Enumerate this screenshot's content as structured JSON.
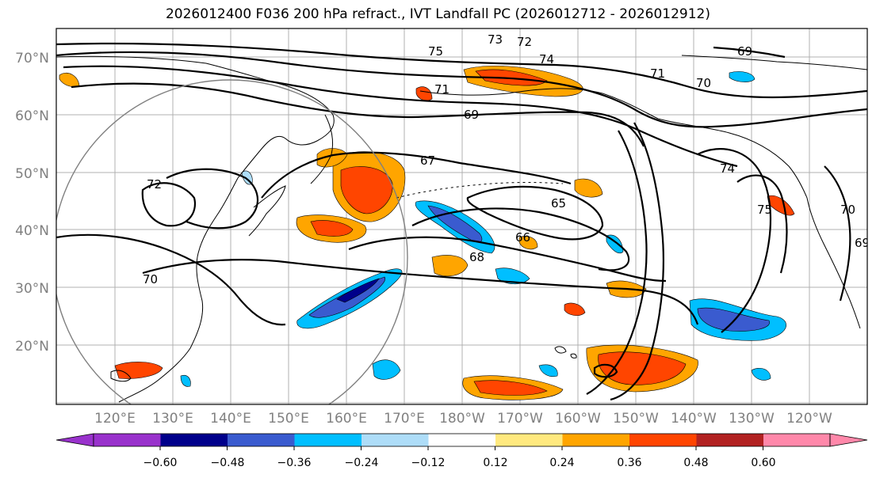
{
  "title": "2026012400 F036 200 hPa refract., IVT Landfall PC (2026012712 - 2026012912)",
  "map": {
    "lat_labels": [
      "70°N",
      "60°N",
      "50°N",
      "40°N",
      "30°N",
      "20°N"
    ],
    "lon_labels": [
      "120°E",
      "130°E",
      "140°E",
      "150°E",
      "160°E",
      "170°E",
      "180°W",
      "170°W",
      "160°W",
      "150°W",
      "140°W",
      "130°W",
      "120°W"
    ],
    "contour_labels": [
      "75",
      "73",
      "72",
      "74",
      "71",
      "70",
      "69",
      "69",
      "67",
      "65",
      "66",
      "68",
      "70",
      "72",
      "74",
      "75",
      "70",
      "69",
      "71"
    ]
  },
  "colorbar": {
    "ticks": [
      "−0.60",
      "−0.48",
      "−0.36",
      "−0.24",
      "−0.12",
      "0.12",
      "0.24",
      "0.36",
      "0.48",
      "0.60"
    ],
    "colors": [
      "#9932CC",
      "#00008B",
      "#3A5BCF",
      "#00BFFF",
      "#AEDDF8",
      "#FFFFFF",
      "#FFE97F",
      "#FFA500",
      "#FF4500",
      "#B22222",
      "#FF88AA"
    ]
  },
  "colors": {
    "red": "#FF4500",
    "orange": "#FFA500",
    "yellow": "#FFE97F",
    "navy": "#00008B",
    "blue": "#3A5BCF",
    "cyan": "#00BFFF",
    "lightblue": "#AEDDF8"
  }
}
